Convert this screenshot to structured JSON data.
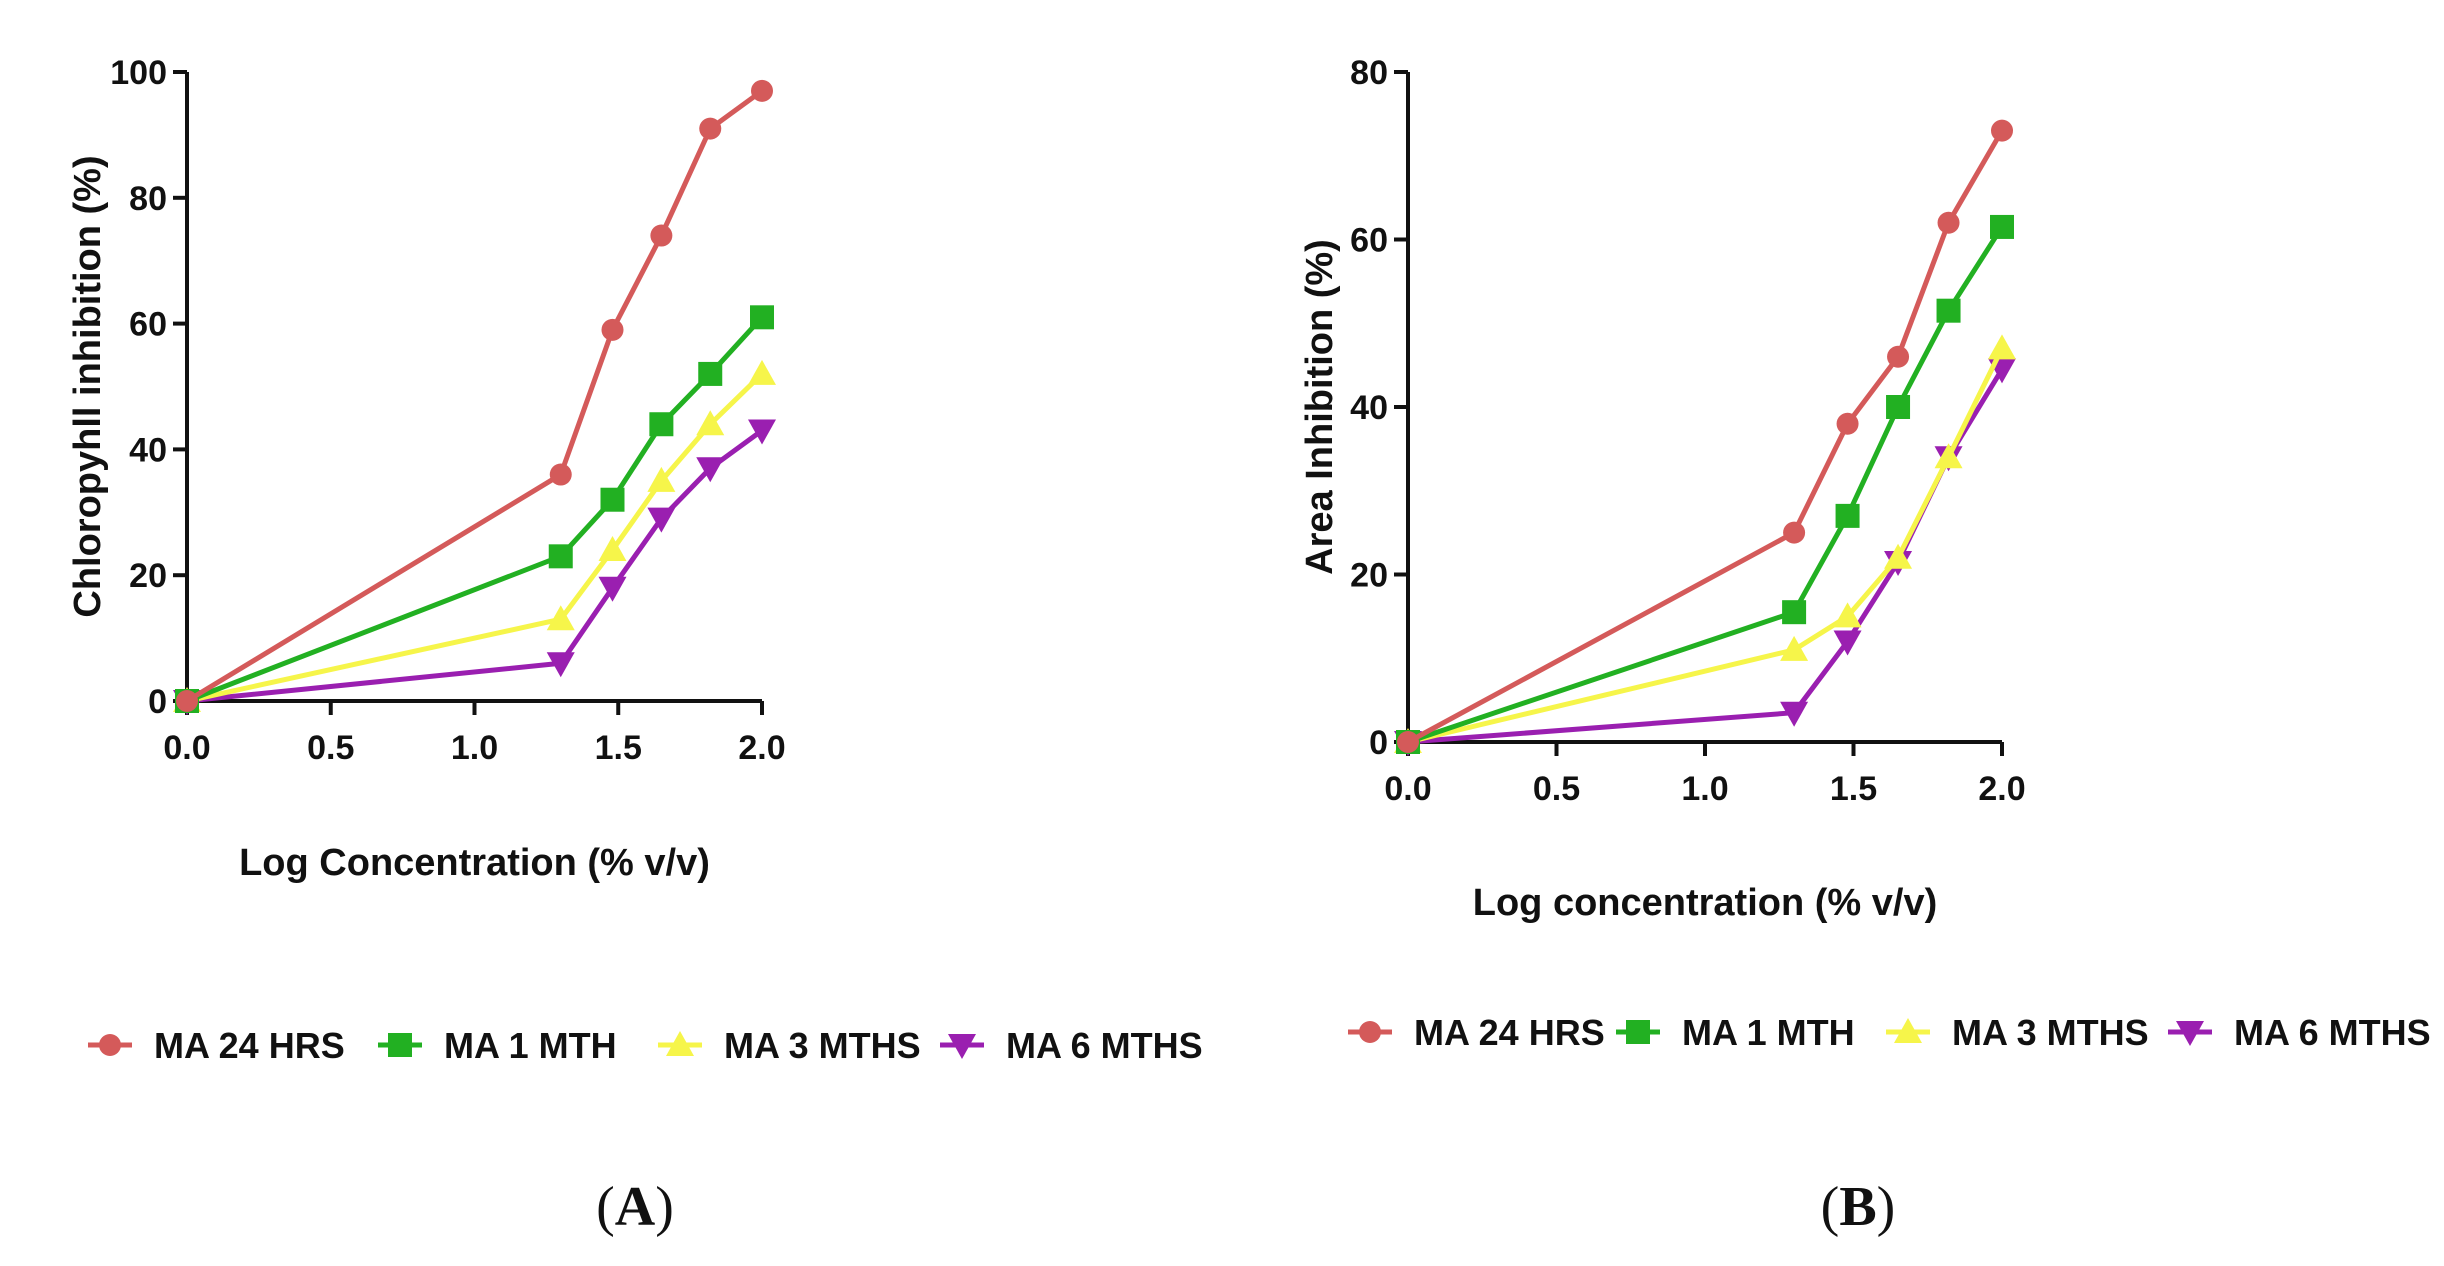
{
  "chart_data": [
    {
      "type": "line",
      "panel_label": "(A)",
      "panel_letter": "A",
      "xlabel": "Log Concentration  (% v/v)",
      "ylabel": "Chloropyhll inhibition (%)",
      "xlim": [
        0,
        2.0
      ],
      "ylim": [
        0,
        100
      ],
      "xticks": [
        0.0,
        0.5,
        1.0,
        1.5,
        2.0
      ],
      "xtick_labels": [
        "0.0",
        "0.5",
        "1.0",
        "1.5",
        "2.0"
      ],
      "yticks": [
        0,
        20,
        40,
        60,
        80,
        100
      ],
      "ytick_labels": [
        "0",
        "20",
        "40",
        "60",
        "80",
        "100"
      ],
      "x": [
        0,
        1.3,
        1.48,
        1.65,
        1.82,
        2.0
      ],
      "series": [
        {
          "name": "MA 24 HRS",
          "color": "#d45a5a",
          "marker": "circle",
          "values": [
            0,
            36,
            59,
            74,
            91,
            97
          ]
        },
        {
          "name": "MA 1 MTH",
          "color": "#22b022",
          "marker": "square",
          "values": [
            0,
            23,
            32,
            44,
            52,
            61
          ]
        },
        {
          "name": "MA 3 MTHS",
          "color": "#f6f54a",
          "marker": "triangle-up",
          "values": [
            0,
            13,
            24,
            35,
            44,
            52
          ]
        },
        {
          "name": "MA 6 MTHS",
          "color": "#9a1fb0",
          "marker": "triangle-down",
          "values": [
            0,
            6,
            18,
            29,
            37,
            43
          ]
        }
      ]
    },
    {
      "type": "line",
      "panel_label": "(B)",
      "panel_letter": "B",
      "xlabel": "Log concentration (% v/v)",
      "ylabel": "Area Inhibition  (%)",
      "xlim": [
        0,
        2.0
      ],
      "ylim": [
        0,
        80
      ],
      "xticks": [
        0.0,
        0.5,
        1.0,
        1.5,
        2.0
      ],
      "xtick_labels": [
        "0.0",
        "0.5",
        "1.0",
        "1.5",
        "2.0"
      ],
      "yticks": [
        0,
        20,
        40,
        60,
        80
      ],
      "ytick_labels": [
        "0",
        "20",
        "40",
        "60",
        "80"
      ],
      "x": [
        0,
        1.3,
        1.48,
        1.65,
        1.82,
        2.0
      ],
      "series": [
        {
          "name": "MA 24 HRS",
          "color": "#d45a5a",
          "marker": "circle",
          "values": [
            0,
            25,
            38,
            46,
            62,
            73
          ]
        },
        {
          "name": "MA 1 MTH",
          "color": "#22b022",
          "marker": "square",
          "values": [
            0,
            15.5,
            27,
            40,
            51.5,
            61.5
          ]
        },
        {
          "name": "MA 3 MTHS",
          "color": "#f6f54a",
          "marker": "triangle-up",
          "values": [
            0,
            11,
            15,
            22,
            34,
            47
          ]
        },
        {
          "name": "MA 6 MTHS",
          "color": "#9a1fb0",
          "marker": "triangle-down",
          "values": [
            0,
            3.5,
            12,
            21.5,
            34,
            44.5
          ]
        }
      ]
    }
  ]
}
